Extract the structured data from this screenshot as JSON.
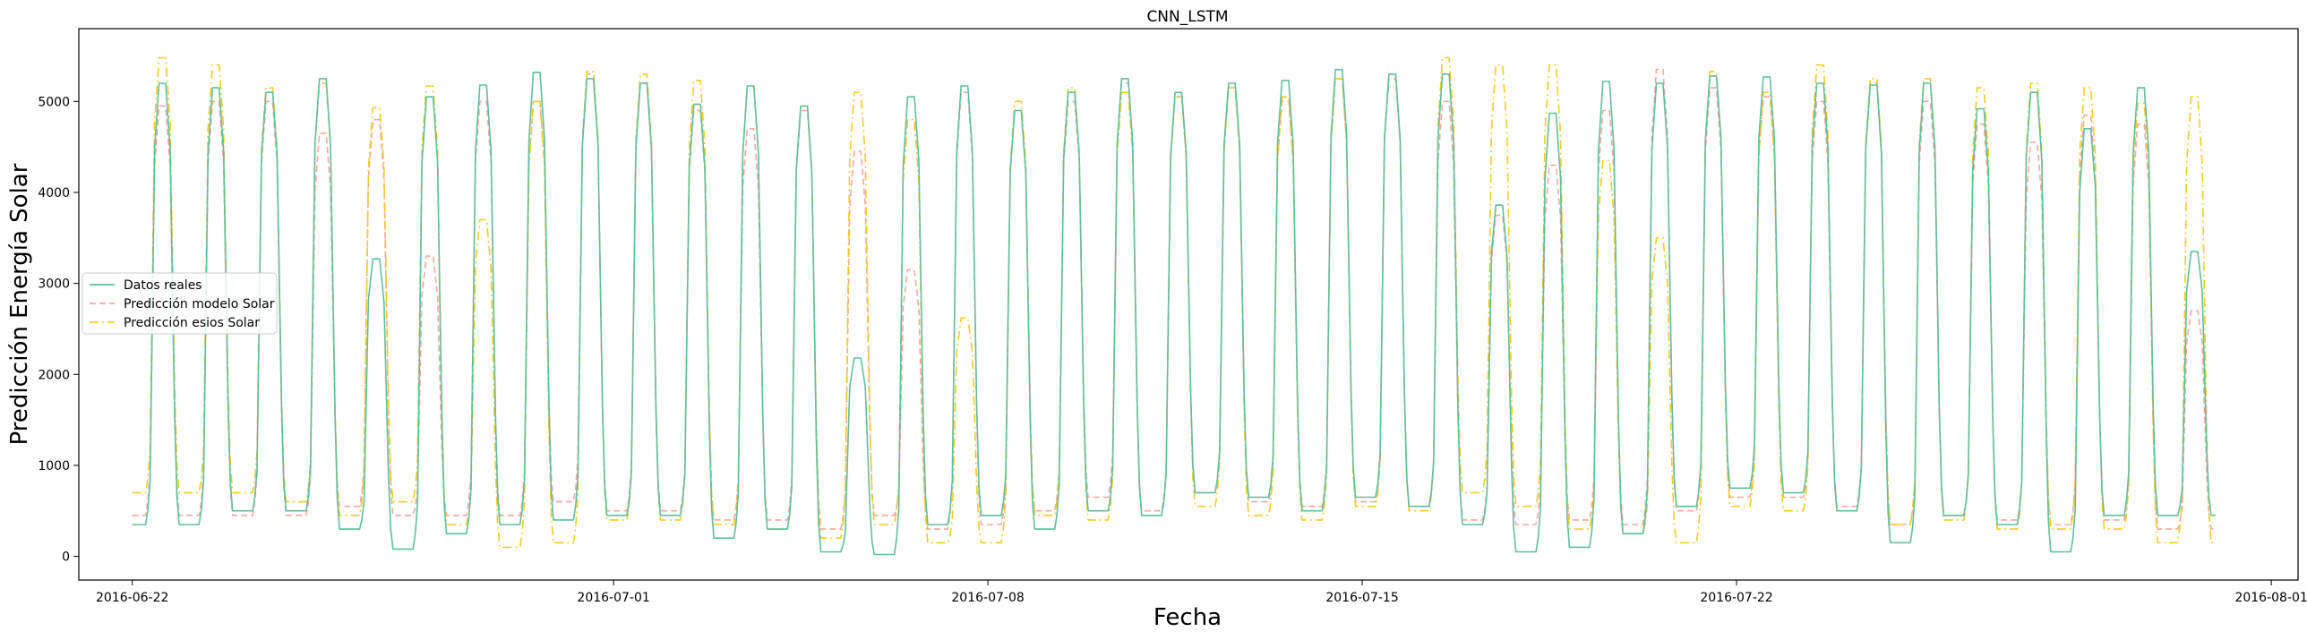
{
  "chart_data": {
    "type": "line",
    "title": "CNN_LSTM",
    "xlabel": "Fecha",
    "ylabel": "Predicción Energía Solar",
    "x_start": "2016-06-22T00:00",
    "x_end": "2016-07-30T23:00",
    "x_range": [
      "2016-06-21T00:00",
      "2016-08-01T12:00"
    ],
    "y_range": [
      -260,
      5800
    ],
    "x_ticks": [
      "2016-06-22",
      "2016-07-01",
      "2016-07-08",
      "2016-07-15",
      "2016-07-22",
      "2016-08-01"
    ],
    "y_ticks": [
      0,
      1000,
      2000,
      3000,
      4000,
      5000
    ],
    "grid": false,
    "legend_position": "center-left",
    "series": [
      {
        "name": "Datos reales",
        "color": "#5fbf9f",
        "style": "solid",
        "peaks": [
          5200,
          5150,
          5100,
          5250,
          3270,
          5050,
          5180,
          5320,
          5250,
          5200,
          4970,
          5170,
          4950,
          2180,
          5050,
          5170,
          4900,
          5100,
          5250,
          5100,
          5200,
          5230,
          5350,
          5300,
          5300,
          3860,
          4870,
          5220,
          5200,
          5280,
          5270,
          5200,
          5180,
          5200,
          4920,
          5100,
          4700,
          5150,
          3350
        ],
        "nights": [
          350,
          500,
          500,
          300,
          80,
          250,
          350,
          400,
          450,
          450,
          200,
          300,
          50,
          20,
          350,
          450,
          300,
          500,
          450,
          700,
          650,
          500,
          650,
          550,
          350,
          50,
          100,
          250,
          550,
          750,
          700,
          500,
          150,
          450,
          350,
          50,
          450,
          450
        ]
      },
      {
        "name": "Predicción modelo Solar",
        "color": "#f4a8a0",
        "style": "dashed",
        "peaks": [
          4950,
          5000,
          5000,
          4650,
          4800,
          3300,
          5000,
          5000,
          5300,
          5200,
          4900,
          4700,
          4900,
          4450,
          3150,
          5100,
          4900,
          5000,
          5200,
          5050,
          5150,
          5000,
          5250,
          5250,
          5000,
          3750,
          4300,
          4900,
          5350,
          5150,
          5050,
          5000,
          5200,
          5000,
          4750,
          4550,
          4850,
          4750,
          2700
        ],
        "nights": [
          450,
          450,
          450,
          550,
          450,
          450,
          450,
          600,
          500,
          500,
          400,
          400,
          300,
          450,
          300,
          350,
          500,
          650,
          500,
          700,
          600,
          550,
          600,
          550,
          400,
          350,
          400,
          350,
          500,
          650,
          650,
          550,
          350,
          450,
          400,
          350,
          400,
          300
        ]
      },
      {
        "name": "Predicción esios Solar",
        "color": "#f5cc1f",
        "style": "dashdot",
        "peaks": [
          5480,
          5400,
          5150,
          5200,
          4930,
          5170,
          3700,
          5000,
          5330,
          5300,
          5230,
          5170,
          4950,
          5100,
          4800,
          2620,
          5000,
          5150,
          5100,
          5050,
          5150,
          5050,
          5250,
          5300,
          5480,
          5400,
          5400,
          4350,
          3500,
          5330,
          5100,
          5400,
          5250,
          5250,
          5150,
          5200,
          5150,
          4980,
          5050
        ],
        "nights": [
          700,
          700,
          600,
          450,
          600,
          350,
          100,
          150,
          400,
          400,
          350,
          300,
          200,
          350,
          150,
          150,
          450,
          400,
          450,
          550,
          450,
          400,
          550,
          500,
          700,
          550,
          300,
          250,
          150,
          550,
          500,
          500,
          350,
          400,
          300,
          300,
          300,
          150
        ]
      }
    ]
  }
}
